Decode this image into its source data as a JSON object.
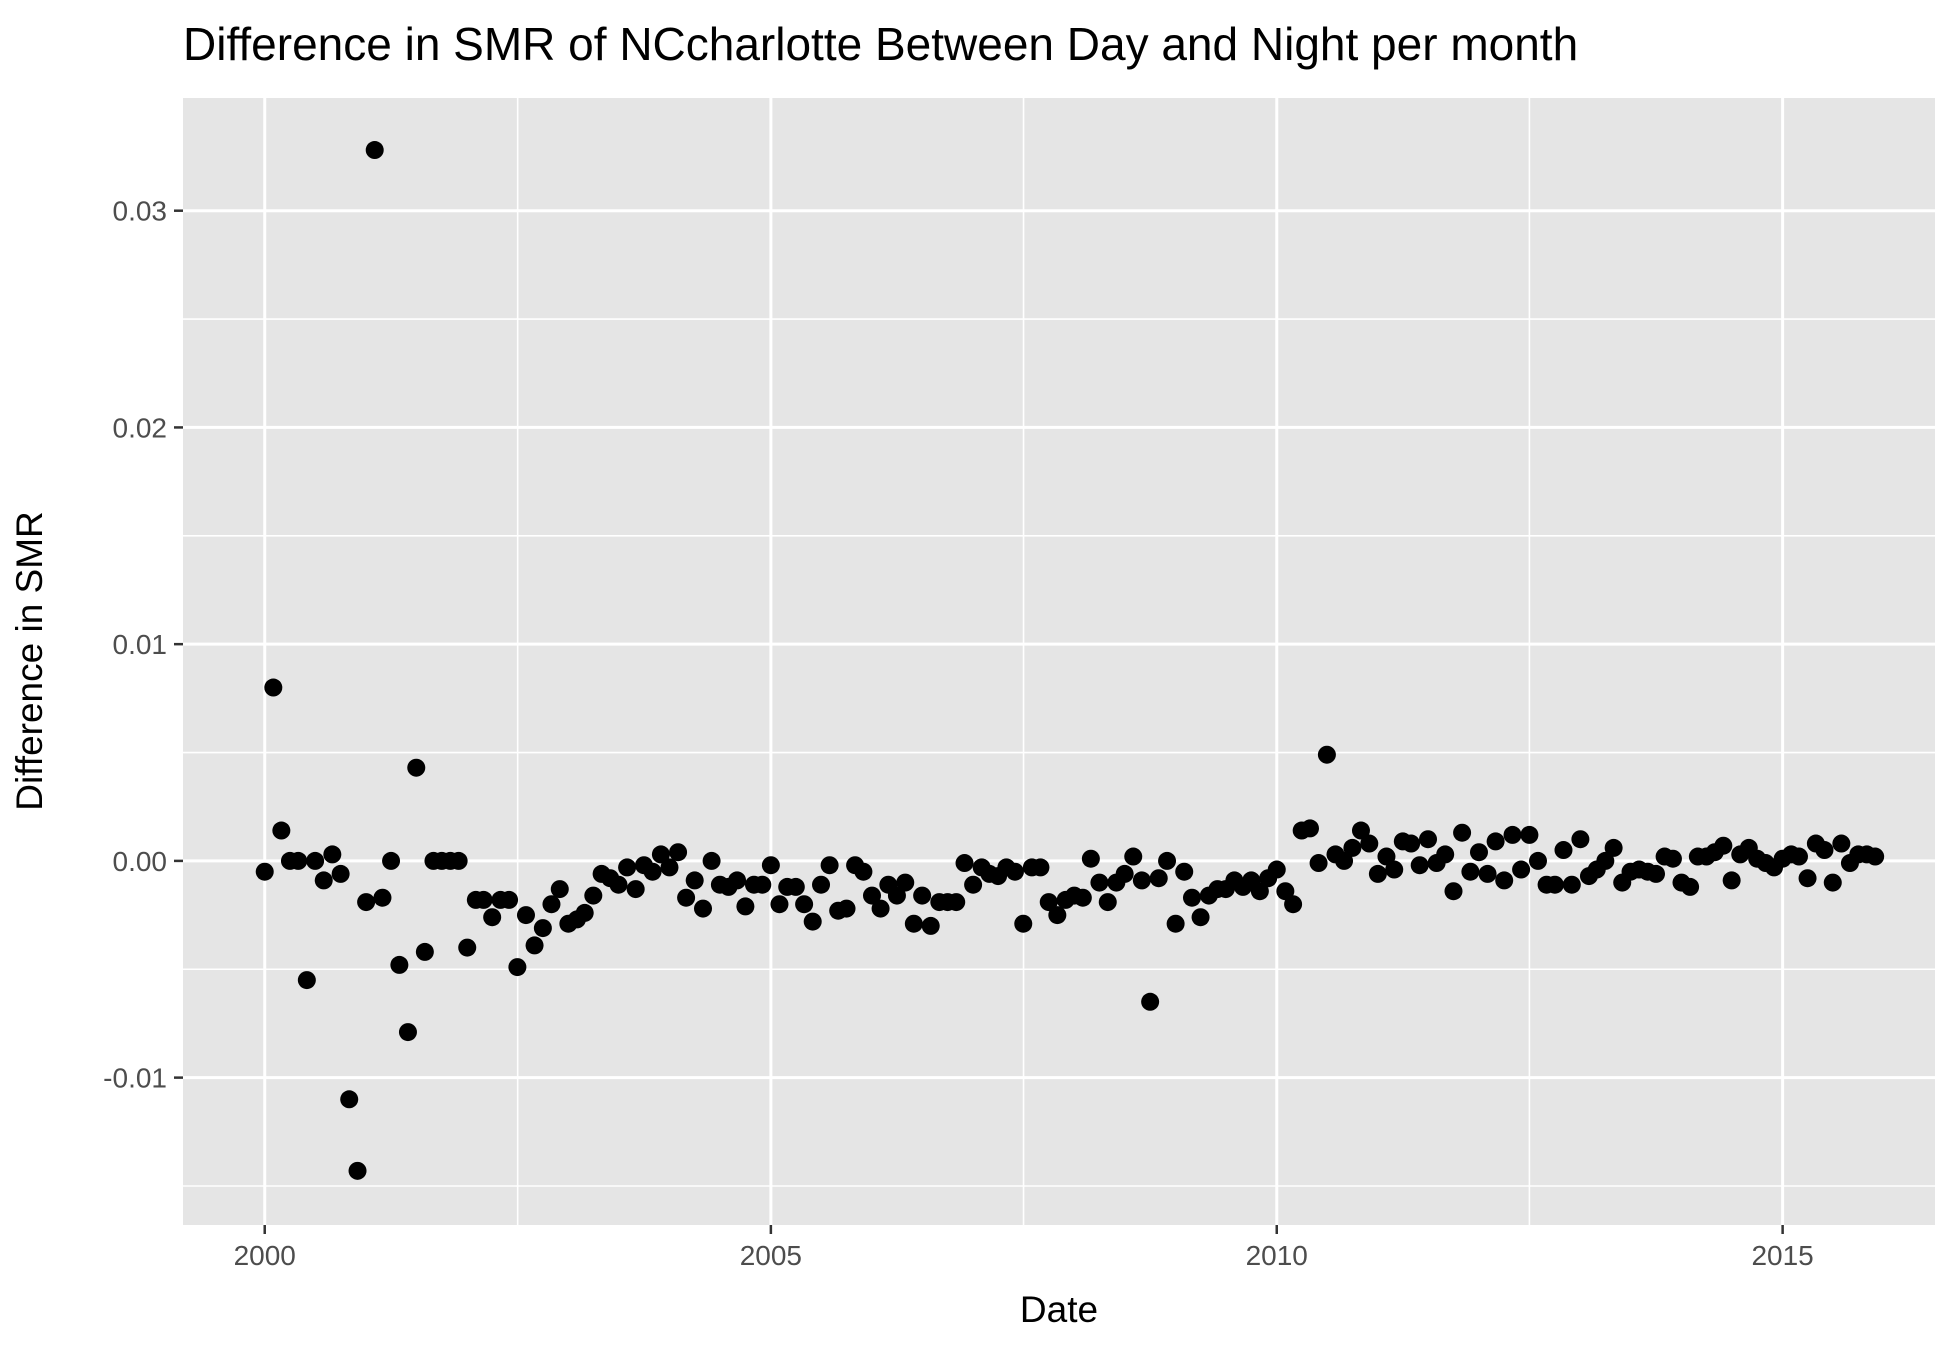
{
  "chart_data": {
    "type": "scatter",
    "title": "Difference in SMR of NCcharlotte Between Day and Night per month",
    "xlabel": "Date",
    "ylabel": "Difference in SMR",
    "x_ticks": [
      "2000",
      "2005",
      "2010",
      "2015"
    ],
    "y_ticks": [
      "-0.01",
      "0.00",
      "0.01",
      "0.02",
      "0.03"
    ],
    "xlim": [
      "1999-03-12",
      "2016-07-04"
    ],
    "ylim": [
      -0.0168,
      0.0352
    ],
    "grid": true,
    "legend": "none",
    "colors": {
      "panel": "#e5e5e5",
      "grid": "#ffffff",
      "point": "#000000",
      "tick_label": "#4d4d4d"
    },
    "series": [
      {
        "x": [
          "2000-01",
          "2000-02",
          "2000-03",
          "2000-04",
          "2000-05",
          "2000-06",
          "2000-07",
          "2000-08",
          "2000-09",
          "2000-10",
          "2000-11",
          "2000-12",
          "2001-01",
          "2001-02",
          "2001-03",
          "2001-04",
          "2001-05",
          "2001-06",
          "2001-07",
          "2001-08",
          "2001-09",
          "2001-10",
          "2001-11",
          "2001-12",
          "2002-01",
          "2002-02",
          "2002-03",
          "2002-04",
          "2002-05",
          "2002-06",
          "2002-07",
          "2002-08",
          "2002-09",
          "2002-10",
          "2002-11",
          "2002-12",
          "2003-01",
          "2003-02",
          "2003-03",
          "2003-04",
          "2003-05",
          "2003-06",
          "2003-07",
          "2003-08",
          "2003-09",
          "2003-10",
          "2003-11",
          "2003-12",
          "2004-01",
          "2004-02",
          "2004-03",
          "2004-04",
          "2004-05",
          "2004-06",
          "2004-07",
          "2004-08",
          "2004-09",
          "2004-10",
          "2004-11",
          "2004-12",
          "2005-01",
          "2005-02",
          "2005-03",
          "2005-04",
          "2005-05",
          "2005-06",
          "2005-07",
          "2005-08",
          "2005-09",
          "2005-10",
          "2005-11",
          "2005-12",
          "2006-01",
          "2006-02",
          "2006-03",
          "2006-04",
          "2006-05",
          "2006-06",
          "2006-07",
          "2006-08",
          "2006-09",
          "2006-10",
          "2006-11",
          "2006-12",
          "2007-01",
          "2007-02",
          "2007-03",
          "2007-04",
          "2007-05",
          "2007-06",
          "2007-07",
          "2007-08",
          "2007-09",
          "2007-10",
          "2007-11",
          "2007-12",
          "2008-01",
          "2008-02",
          "2008-03",
          "2008-04",
          "2008-05",
          "2008-06",
          "2008-07",
          "2008-08",
          "2008-09",
          "2008-10",
          "2008-11",
          "2008-12",
          "2009-01",
          "2009-02",
          "2009-03",
          "2009-04",
          "2009-05",
          "2009-06",
          "2009-07",
          "2009-08",
          "2009-09",
          "2009-10",
          "2009-11",
          "2009-12",
          "2010-01",
          "2010-02",
          "2010-03",
          "2010-04",
          "2010-05",
          "2010-06",
          "2010-07",
          "2010-08",
          "2010-09",
          "2010-10",
          "2010-11",
          "2010-12",
          "2011-01",
          "2011-02",
          "2011-03",
          "2011-04",
          "2011-05",
          "2011-06",
          "2011-07",
          "2011-08",
          "2011-09",
          "2011-10",
          "2011-11",
          "2011-12",
          "2012-01",
          "2012-02",
          "2012-03",
          "2012-04",
          "2012-05",
          "2012-06",
          "2012-07",
          "2012-08",
          "2012-09",
          "2012-10",
          "2012-11",
          "2012-12",
          "2013-01",
          "2013-02",
          "2013-03",
          "2013-04",
          "2013-05",
          "2013-06",
          "2013-07",
          "2013-08",
          "2013-09",
          "2013-10",
          "2013-11",
          "2013-12",
          "2014-01",
          "2014-02",
          "2014-03",
          "2014-04",
          "2014-05",
          "2014-06",
          "2014-07",
          "2014-08",
          "2014-09",
          "2014-10",
          "2014-11",
          "2014-12",
          "2015-01",
          "2015-02",
          "2015-03",
          "2015-04",
          "2015-05",
          "2015-06",
          "2015-07",
          "2015-08",
          "2015-09",
          "2015-10",
          "2015-11",
          "2015-12"
        ],
        "y": [
          -0.0005,
          0.008,
          0.0014,
          0.0,
          0.0,
          -0.0055,
          0.0,
          -0.0009,
          0.0003,
          -0.0006,
          -0.011,
          -0.0143,
          -0.0019,
          0.0328,
          -0.0017,
          0.0,
          -0.0048,
          -0.0079,
          0.0043,
          -0.0042,
          0.0,
          0.0,
          0.0,
          0.0,
          -0.004,
          -0.0018,
          -0.0018,
          -0.0026,
          -0.0018,
          -0.0018,
          -0.0049,
          -0.0025,
          -0.0039,
          -0.0031,
          -0.002,
          -0.0013,
          -0.0029,
          -0.0027,
          -0.0024,
          -0.0016,
          -0.0006,
          -0.0008,
          -0.0011,
          -0.0003,
          -0.0013,
          -0.0002,
          -0.0005,
          0.0003,
          -0.0003,
          0.0004,
          -0.0017,
          -0.0009,
          -0.0022,
          0.0,
          -0.0011,
          -0.0012,
          -0.0009,
          -0.0021,
          -0.0011,
          -0.0011,
          -0.0002,
          -0.002,
          -0.0012,
          -0.0012,
          -0.002,
          -0.0028,
          -0.0011,
          -0.0002,
          -0.0023,
          -0.0022,
          -0.0002,
          -0.0005,
          -0.0016,
          -0.0022,
          -0.0011,
          -0.0016,
          -0.001,
          -0.0029,
          -0.0016,
          -0.003,
          -0.0019,
          -0.0019,
          -0.0019,
          -0.0001,
          -0.0011,
          -0.0003,
          -0.0006,
          -0.0007,
          -0.0003,
          -0.0005,
          -0.0029,
          -0.0003,
          -0.0003,
          -0.0019,
          -0.0025,
          -0.0018,
          -0.0016,
          -0.0017,
          0.0001,
          -0.001,
          -0.0019,
          -0.001,
          -0.0006,
          0.0002,
          -0.0009,
          -0.0065,
          -0.0008,
          0.0,
          -0.0029,
          -0.0005,
          -0.0017,
          -0.0026,
          -0.0016,
          -0.0013,
          -0.0013,
          -0.0009,
          -0.0012,
          -0.0009,
          -0.0014,
          -0.0008,
          -0.0004,
          -0.0014,
          -0.002,
          0.0014,
          0.0015,
          -0.0001,
          0.0049,
          0.0003,
          0.0,
          0.0006,
          0.0014,
          0.0008,
          -0.0006,
          0.0002,
          -0.0004,
          0.0009,
          0.0008,
          -0.0002,
          0.001,
          -0.0001,
          0.0003,
          -0.0014,
          0.0013,
          -0.0005,
          0.0004,
          -0.0006,
          0.0009,
          -0.0009,
          0.0012,
          -0.0004,
          0.0012,
          0.0,
          -0.0011,
          -0.0011,
          0.0005,
          -0.0011,
          0.001,
          -0.0007,
          -0.0004,
          0.0,
          0.0006,
          -0.001,
          -0.0005,
          -0.0004,
          -0.0005,
          -0.0006,
          0.0002,
          0.0001,
          -0.001,
          -0.0012,
          0.0002,
          0.0002,
          0.0004,
          0.0007,
          -0.0009,
          0.0003,
          0.0006,
          0.0001,
          -0.0001,
          -0.0003,
          0.0001,
          0.0003,
          0.0002,
          -0.0008,
          0.0008,
          0.0005,
          -0.001,
          0.0008,
          -0.0001,
          0.0003,
          0.0003,
          0.0002
        ]
      }
    ]
  }
}
